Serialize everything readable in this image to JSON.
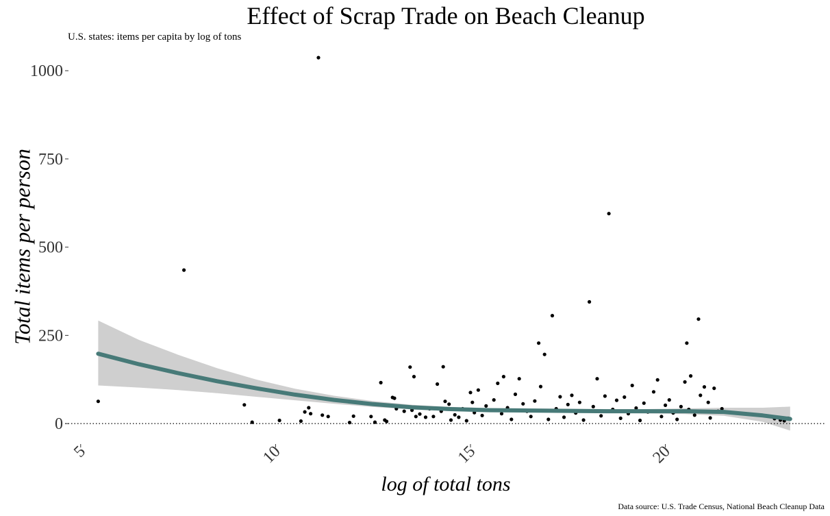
{
  "chart_data": {
    "type": "scatter",
    "title": "Effect of Scrap Trade on Beach Cleanup",
    "subtitle": "U.S. states: items per capita by log of tons",
    "caption": "Data source: U.S. Trade Census, National Beach Cleanup Data",
    "xlabel": "log of total tons",
    "ylabel": "Total items per person",
    "xlim": [
      4.6,
      24.1
    ],
    "ylim": [
      -58,
      1045
    ],
    "x_ticks": [
      5,
      10,
      15,
      20
    ],
    "y_ticks": [
      0,
      250,
      500,
      750,
      1000
    ],
    "x_tick_labels": [
      "5",
      "10",
      "15",
      "20"
    ],
    "y_tick_labels": [
      "0",
      "250",
      "500",
      "750",
      "1000"
    ],
    "grid": false,
    "reference_line": {
      "y": 0,
      "style": "dotted"
    },
    "colors": {
      "points": "#000000",
      "smooth_line": "#477a78",
      "confidence_band": "#cfcfcf"
    },
    "points": [
      {
        "x": 5.45,
        "y": 63
      },
      {
        "x": 7.65,
        "y": 435
      },
      {
        "x": 9.2,
        "y": 53
      },
      {
        "x": 9.4,
        "y": 4
      },
      {
        "x": 10.1,
        "y": 9
      },
      {
        "x": 10.65,
        "y": 7
      },
      {
        "x": 10.75,
        "y": 33
      },
      {
        "x": 10.85,
        "y": 45
      },
      {
        "x": 10.9,
        "y": 28
      },
      {
        "x": 11.1,
        "y": 1037
      },
      {
        "x": 11.2,
        "y": 24
      },
      {
        "x": 11.35,
        "y": 20
      },
      {
        "x": 11.9,
        "y": 3
      },
      {
        "x": 12.0,
        "y": 21
      },
      {
        "x": 12.45,
        "y": 20
      },
      {
        "x": 12.55,
        "y": 4
      },
      {
        "x": 12.7,
        "y": 116
      },
      {
        "x": 12.8,
        "y": 10
      },
      {
        "x": 12.85,
        "y": 6
      },
      {
        "x": 13.0,
        "y": 74
      },
      {
        "x": 13.05,
        "y": 72
      },
      {
        "x": 13.1,
        "y": 42
      },
      {
        "x": 13.3,
        "y": 35
      },
      {
        "x": 13.45,
        "y": 160
      },
      {
        "x": 13.5,
        "y": 38
      },
      {
        "x": 13.55,
        "y": 133
      },
      {
        "x": 13.6,
        "y": 20
      },
      {
        "x": 13.7,
        "y": 27
      },
      {
        "x": 13.85,
        "y": 18
      },
      {
        "x": 13.95,
        "y": 42
      },
      {
        "x": 14.05,
        "y": 20
      },
      {
        "x": 14.15,
        "y": 112
      },
      {
        "x": 14.25,
        "y": 35
      },
      {
        "x": 14.3,
        "y": 161
      },
      {
        "x": 14.35,
        "y": 63
      },
      {
        "x": 14.45,
        "y": 55
      },
      {
        "x": 14.5,
        "y": 10
      },
      {
        "x": 14.6,
        "y": 25
      },
      {
        "x": 14.7,
        "y": 18
      },
      {
        "x": 14.8,
        "y": 42
      },
      {
        "x": 14.9,
        "y": 8
      },
      {
        "x": 15.0,
        "y": 88
      },
      {
        "x": 15.05,
        "y": 60
      },
      {
        "x": 15.1,
        "y": 31
      },
      {
        "x": 15.2,
        "y": 95
      },
      {
        "x": 15.3,
        "y": 23
      },
      {
        "x": 15.4,
        "y": 50
      },
      {
        "x": 15.5,
        "y": 38
      },
      {
        "x": 15.6,
        "y": 67
      },
      {
        "x": 15.7,
        "y": 114
      },
      {
        "x": 15.8,
        "y": 28
      },
      {
        "x": 15.85,
        "y": 133
      },
      {
        "x": 15.95,
        "y": 45
      },
      {
        "x": 16.05,
        "y": 12
      },
      {
        "x": 16.15,
        "y": 83
      },
      {
        "x": 16.25,
        "y": 127
      },
      {
        "x": 16.35,
        "y": 56
      },
      {
        "x": 16.45,
        "y": 35
      },
      {
        "x": 16.55,
        "y": 20
      },
      {
        "x": 16.65,
        "y": 64
      },
      {
        "x": 16.75,
        "y": 228
      },
      {
        "x": 16.8,
        "y": 105
      },
      {
        "x": 16.9,
        "y": 196
      },
      {
        "x": 17.0,
        "y": 12
      },
      {
        "x": 17.1,
        "y": 306
      },
      {
        "x": 17.2,
        "y": 42
      },
      {
        "x": 17.3,
        "y": 76
      },
      {
        "x": 17.4,
        "y": 18
      },
      {
        "x": 17.5,
        "y": 54
      },
      {
        "x": 17.6,
        "y": 80
      },
      {
        "x": 17.7,
        "y": 30
      },
      {
        "x": 17.8,
        "y": 60
      },
      {
        "x": 17.9,
        "y": 10
      },
      {
        "x": 18.0,
        "y": 36
      },
      {
        "x": 18.05,
        "y": 345
      },
      {
        "x": 18.15,
        "y": 48
      },
      {
        "x": 18.25,
        "y": 127
      },
      {
        "x": 18.35,
        "y": 22
      },
      {
        "x": 18.45,
        "y": 78
      },
      {
        "x": 18.55,
        "y": 595
      },
      {
        "x": 18.65,
        "y": 40
      },
      {
        "x": 18.75,
        "y": 66
      },
      {
        "x": 18.85,
        "y": 15
      },
      {
        "x": 18.95,
        "y": 75
      },
      {
        "x": 19.05,
        "y": 28
      },
      {
        "x": 19.15,
        "y": 108
      },
      {
        "x": 19.25,
        "y": 44
      },
      {
        "x": 19.35,
        "y": 9
      },
      {
        "x": 19.45,
        "y": 58
      },
      {
        "x": 19.55,
        "y": 33
      },
      {
        "x": 19.7,
        "y": 90
      },
      {
        "x": 19.8,
        "y": 124
      },
      {
        "x": 19.9,
        "y": 20
      },
      {
        "x": 20.0,
        "y": 52
      },
      {
        "x": 20.1,
        "y": 67
      },
      {
        "x": 20.2,
        "y": 30
      },
      {
        "x": 20.3,
        "y": 12
      },
      {
        "x": 20.4,
        "y": 48
      },
      {
        "x": 20.5,
        "y": 118
      },
      {
        "x": 20.55,
        "y": 228
      },
      {
        "x": 20.6,
        "y": 40
      },
      {
        "x": 20.65,
        "y": 135
      },
      {
        "x": 20.75,
        "y": 24
      },
      {
        "x": 20.85,
        "y": 296
      },
      {
        "x": 20.9,
        "y": 80
      },
      {
        "x": 21.0,
        "y": 104
      },
      {
        "x": 21.1,
        "y": 60
      },
      {
        "x": 21.15,
        "y": 16
      },
      {
        "x": 21.25,
        "y": 100
      },
      {
        "x": 21.35,
        "y": 35
      },
      {
        "x": 21.45,
        "y": 42
      },
      {
        "x": 22.8,
        "y": 14
      },
      {
        "x": 22.95,
        "y": 10
      },
      {
        "x": 23.05,
        "y": 8
      },
      {
        "x": 23.15,
        "y": 15
      }
    ],
    "smooth_line": {
      "x": [
        5.45,
        6.5,
        7.5,
        8.5,
        9.5,
        10.5,
        11.5,
        12.5,
        13.5,
        14.5,
        15.5,
        16.5,
        17.5,
        18.5,
        19.5,
        20.5,
        21.5,
        22.5,
        23.2
      ],
      "y": [
        198,
        168,
        143,
        120,
        100,
        82,
        67,
        55,
        46,
        41,
        38,
        37,
        36,
        35,
        35,
        35,
        33,
        23,
        13
      ]
    },
    "confidence_band": {
      "x": [
        5.45,
        6.5,
        7.5,
        8.5,
        9.5,
        10.5,
        11.5,
        12.5,
        13.5,
        14.5,
        15.5,
        16.5,
        17.5,
        18.5,
        19.5,
        20.5,
        21.5,
        22.5,
        23.2
      ],
      "lower": [
        108,
        102,
        95,
        86,
        76,
        66,
        56,
        47,
        40,
        35,
        33,
        32,
        31,
        30,
        29,
        27,
        22,
        5,
        -20
      ],
      "upper": [
        292,
        237,
        195,
        157,
        125,
        99,
        79,
        64,
        53,
        47,
        44,
        43,
        42,
        41,
        41,
        43,
        45,
        45,
        48
      ]
    }
  }
}
